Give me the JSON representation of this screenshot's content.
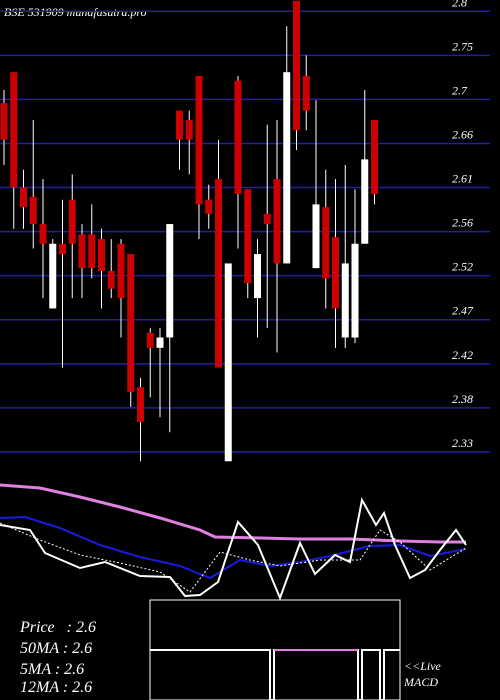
{
  "chart_data": {
    "type": "candlestick",
    "title": "BSE 531909 munafasutra.pro",
    "ylim": [
      2.316,
      2.812
    ],
    "yticks": [
      2.8,
      {
        "value": 2.753,
        "label": "2.75"
      },
      {
        "value": 2.706,
        "label": "2.7"
      },
      {
        "value": 2.659,
        "label": "2.66"
      },
      {
        "value": 2.612,
        "label": "2.61"
      },
      {
        "value": 2.565,
        "label": "2.56"
      },
      {
        "value": 2.518,
        "label": "2.52"
      },
      {
        "value": 2.471,
        "label": "2.47"
      },
      {
        "value": 2.424,
        "label": "2.42"
      },
      {
        "value": 2.377,
        "label": "2.38"
      },
      {
        "value": 2.33,
        "label": "2.33"
      }
    ],
    "grid": true,
    "up_color": "#ffffff",
    "down_color": "#cc0000",
    "open": [
      2.702,
      2.735,
      2.612,
      2.602,
      2.573,
      2.483,
      2.552,
      2.599,
      2.562,
      2.562,
      2.557,
      2.523,
      2.552,
      2.541,
      2.399,
      2.457,
      2.441,
      2.452,
      2.694,
      2.684,
      2.731,
      2.599,
      2.621,
      2.32,
      2.726,
      2.61,
      2.494,
      2.584,
      2.621,
      2.531,
      2.811,
      2.731,
      2.526,
      2.591,
      2.559,
      2.452,
      2.452,
      2.552,
      2.684
    ],
    "high": [
      2.716,
      2.735,
      2.631,
      2.684,
      2.621,
      2.557,
      2.599,
      2.626,
      2.573,
      2.594,
      2.568,
      2.557,
      2.557,
      2.541,
      2.409,
      2.462,
      2.462,
      2.573,
      2.694,
      2.694,
      2.731,
      2.615,
      2.663,
      2.531,
      2.731,
      2.61,
      2.557,
      2.679,
      2.684,
      2.784,
      2.811,
      2.753,
      2.705,
      2.631,
      2.621,
      2.636,
      2.61,
      2.716,
      2.684
    ],
    "low": [
      2.636,
      2.568,
      2.568,
      2.547,
      2.494,
      2.483,
      2.42,
      2.494,
      2.494,
      2.515,
      2.483,
      2.494,
      2.452,
      2.378,
      2.32,
      2.388,
      2.367,
      2.351,
      2.631,
      2.626,
      2.557,
      2.568,
      2.42,
      2.32,
      2.547,
      2.494,
      2.452,
      2.462,
      2.436,
      2.531,
      2.652,
      2.673,
      2.526,
      2.483,
      2.441,
      2.441,
      2.446,
      2.552,
      2.594
    ],
    "close": [
      2.663,
      2.612,
      2.591,
      2.573,
      2.552,
      2.552,
      2.541,
      2.552,
      2.526,
      2.526,
      2.523,
      2.504,
      2.494,
      2.394,
      2.362,
      2.441,
      2.452,
      2.573,
      2.663,
      2.663,
      2.594,
      2.584,
      2.42,
      2.531,
      2.605,
      2.51,
      2.541,
      2.573,
      2.531,
      2.735,
      2.673,
      2.694,
      2.594,
      2.515,
      2.483,
      2.531,
      2.552,
      2.642,
      2.605
    ],
    "info": [
      "Price   : 2.6",
      "50MA : 2.6",
      "5MA : 2.6",
      "12MA : 2.6"
    ],
    "live": "<<Live",
    "macd": "MACD"
  }
}
